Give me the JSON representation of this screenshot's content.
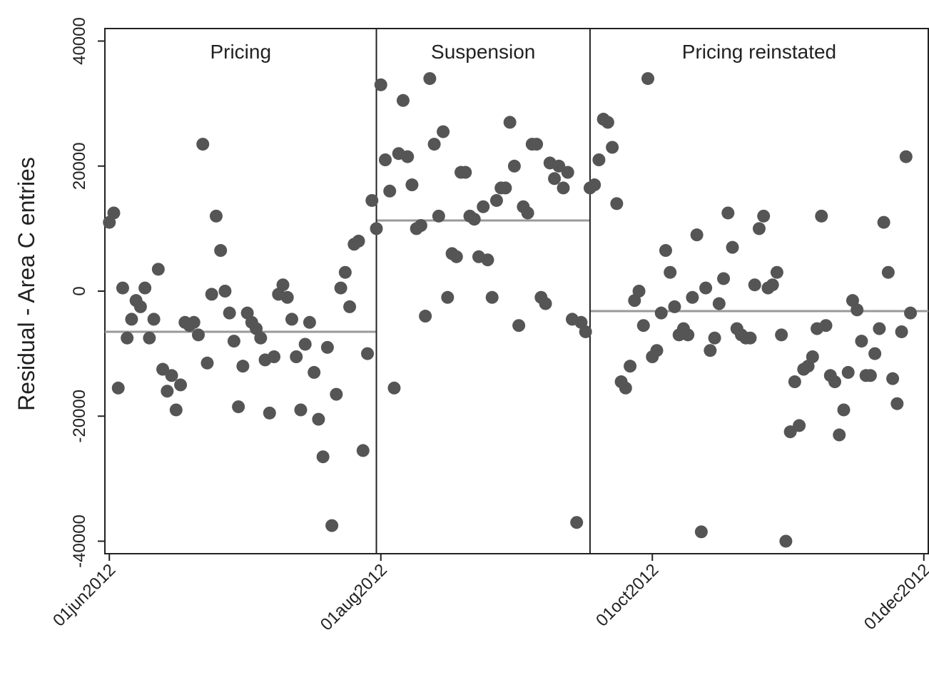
{
  "chart_data": {
    "type": "scatter",
    "title": "",
    "xlabel": "",
    "ylabel": "Residual - Area C entries",
    "xlim": [
      "2012-05-31",
      "2012-12-02"
    ],
    "ylim": [
      -42000,
      42000
    ],
    "y_ticks": [
      -40000,
      -20000,
      0,
      20000,
      40000
    ],
    "x_ticks": [
      {
        "date": "2012-06-01",
        "label": "01jun2012"
      },
      {
        "date": "2012-08-01",
        "label": "01aug2012"
      },
      {
        "date": "2012-10-01",
        "label": "01oct2012"
      },
      {
        "date": "2012-12-01",
        "label": "01dec2012"
      }
    ],
    "grid": false,
    "legend": "none",
    "colors": {
      "points": "#555555",
      "mean_line": "#999999",
      "divider": "#222222",
      "frame": "#222222"
    },
    "periods": [
      {
        "label": "Pricing",
        "start": "2012-05-31",
        "end": "2012-07-31",
        "mean": -6500
      },
      {
        "label": "Suspension",
        "start": "2012-07-31",
        "end": "2012-09-17",
        "mean": 11300
      },
      {
        "label": "Pricing reinstated",
        "start": "2012-09-17",
        "end": "2012-12-02",
        "mean": -3200
      }
    ],
    "dividers": [
      "2012-07-31",
      "2012-09-17"
    ],
    "points": [
      {
        "x": "2012-06-01",
        "y": 11000
      },
      {
        "x": "2012-06-02",
        "y": 12500
      },
      {
        "x": "2012-06-03",
        "y": -15500
      },
      {
        "x": "2012-06-04",
        "y": 500
      },
      {
        "x": "2012-06-05",
        "y": -7500
      },
      {
        "x": "2012-06-06",
        "y": -4500
      },
      {
        "x": "2012-06-07",
        "y": -1500
      },
      {
        "x": "2012-06-08",
        "y": -2500
      },
      {
        "x": "2012-06-09",
        "y": 500
      },
      {
        "x": "2012-06-10",
        "y": -7500
      },
      {
        "x": "2012-06-11",
        "y": -4500
      },
      {
        "x": "2012-06-12",
        "y": 3500
      },
      {
        "x": "2012-06-13",
        "y": -12500
      },
      {
        "x": "2012-06-14",
        "y": -16000
      },
      {
        "x": "2012-06-15",
        "y": -13500
      },
      {
        "x": "2012-06-16",
        "y": -19000
      },
      {
        "x": "2012-06-17",
        "y": -15000
      },
      {
        "x": "2012-06-18",
        "y": -5000
      },
      {
        "x": "2012-06-19",
        "y": -5500
      },
      {
        "x": "2012-06-20",
        "y": -5000
      },
      {
        "x": "2012-06-21",
        "y": -7000
      },
      {
        "x": "2012-06-22",
        "y": 23500
      },
      {
        "x": "2012-06-23",
        "y": -11500
      },
      {
        "x": "2012-06-24",
        "y": -500
      },
      {
        "x": "2012-06-25",
        "y": 12000
      },
      {
        "x": "2012-06-26",
        "y": 6500
      },
      {
        "x": "2012-06-27",
        "y": 0
      },
      {
        "x": "2012-06-28",
        "y": -3500
      },
      {
        "x": "2012-06-29",
        "y": -8000
      },
      {
        "x": "2012-06-30",
        "y": -18500
      },
      {
        "x": "2012-07-01",
        "y": -12000
      },
      {
        "x": "2012-07-02",
        "y": -3500
      },
      {
        "x": "2012-07-03",
        "y": -5000
      },
      {
        "x": "2012-07-04",
        "y": -6000
      },
      {
        "x": "2012-07-05",
        "y": -7500
      },
      {
        "x": "2012-07-06",
        "y": -11000
      },
      {
        "x": "2012-07-07",
        "y": -19500
      },
      {
        "x": "2012-07-08",
        "y": -10500
      },
      {
        "x": "2012-07-09",
        "y": -500
      },
      {
        "x": "2012-07-10",
        "y": 1000
      },
      {
        "x": "2012-07-11",
        "y": -1000
      },
      {
        "x": "2012-07-12",
        "y": -4500
      },
      {
        "x": "2012-07-13",
        "y": -10500
      },
      {
        "x": "2012-07-14",
        "y": -19000
      },
      {
        "x": "2012-07-15",
        "y": -8500
      },
      {
        "x": "2012-07-16",
        "y": -5000
      },
      {
        "x": "2012-07-17",
        "y": -13000
      },
      {
        "x": "2012-07-18",
        "y": -20500
      },
      {
        "x": "2012-07-19",
        "y": -26500
      },
      {
        "x": "2012-07-20",
        "y": -9000
      },
      {
        "x": "2012-07-21",
        "y": -37500
      },
      {
        "x": "2012-07-22",
        "y": -16500
      },
      {
        "x": "2012-07-23",
        "y": 500
      },
      {
        "x": "2012-07-24",
        "y": 3000
      },
      {
        "x": "2012-07-25",
        "y": -2500
      },
      {
        "x": "2012-07-26",
        "y": 7500
      },
      {
        "x": "2012-07-27",
        "y": 8000
      },
      {
        "x": "2012-07-28",
        "y": -25500
      },
      {
        "x": "2012-07-29",
        "y": -10000
      },
      {
        "x": "2012-07-30",
        "y": 14500
      },
      {
        "x": "2012-07-31",
        "y": 10000
      },
      {
        "x": "2012-08-01",
        "y": 33000
      },
      {
        "x": "2012-08-02",
        "y": 21000
      },
      {
        "x": "2012-08-03",
        "y": 16000
      },
      {
        "x": "2012-08-04",
        "y": -15500
      },
      {
        "x": "2012-08-05",
        "y": 22000
      },
      {
        "x": "2012-08-06",
        "y": 30500
      },
      {
        "x": "2012-08-07",
        "y": 21500
      },
      {
        "x": "2012-08-08",
        "y": 17000
      },
      {
        "x": "2012-08-09",
        "y": 10000
      },
      {
        "x": "2012-08-10",
        "y": 10500
      },
      {
        "x": "2012-08-11",
        "y": -4000
      },
      {
        "x": "2012-08-12",
        "y": 34000
      },
      {
        "x": "2012-08-13",
        "y": 23500
      },
      {
        "x": "2012-08-14",
        "y": 12000
      },
      {
        "x": "2012-08-15",
        "y": 25500
      },
      {
        "x": "2012-08-16",
        "y": -1000
      },
      {
        "x": "2012-08-17",
        "y": 6000
      },
      {
        "x": "2012-08-18",
        "y": 5500
      },
      {
        "x": "2012-08-19",
        "y": 19000
      },
      {
        "x": "2012-08-20",
        "y": 19000
      },
      {
        "x": "2012-08-21",
        "y": 12000
      },
      {
        "x": "2012-08-22",
        "y": 11500
      },
      {
        "x": "2012-08-23",
        "y": 5500
      },
      {
        "x": "2012-08-24",
        "y": 13500
      },
      {
        "x": "2012-08-25",
        "y": 5000
      },
      {
        "x": "2012-08-26",
        "y": -1000
      },
      {
        "x": "2012-08-27",
        "y": 14500
      },
      {
        "x": "2012-08-28",
        "y": 16500
      },
      {
        "x": "2012-08-29",
        "y": 16500
      },
      {
        "x": "2012-08-30",
        "y": 27000
      },
      {
        "x": "2012-08-31",
        "y": 20000
      },
      {
        "x": "2012-09-01",
        "y": -5500
      },
      {
        "x": "2012-09-02",
        "y": 13500
      },
      {
        "x": "2012-09-03",
        "y": 12500
      },
      {
        "x": "2012-09-04",
        "y": 23500
      },
      {
        "x": "2012-09-05",
        "y": 23500
      },
      {
        "x": "2012-09-06",
        "y": -1000
      },
      {
        "x": "2012-09-07",
        "y": -2000
      },
      {
        "x": "2012-09-08",
        "y": 20500
      },
      {
        "x": "2012-09-09",
        "y": 18000
      },
      {
        "x": "2012-09-10",
        "y": 20000
      },
      {
        "x": "2012-09-11",
        "y": 16500
      },
      {
        "x": "2012-09-12",
        "y": 19000
      },
      {
        "x": "2012-09-13",
        "y": -4500
      },
      {
        "x": "2012-09-14",
        "y": -37000
      },
      {
        "x": "2012-09-15",
        "y": -5000
      },
      {
        "x": "2012-09-16",
        "y": -6500
      },
      {
        "x": "2012-09-17",
        "y": 16500
      },
      {
        "x": "2012-09-18",
        "y": 17000
      },
      {
        "x": "2012-09-19",
        "y": 21000
      },
      {
        "x": "2012-09-20",
        "y": 27500
      },
      {
        "x": "2012-09-21",
        "y": 27000
      },
      {
        "x": "2012-09-22",
        "y": 23000
      },
      {
        "x": "2012-09-23",
        "y": 14000
      },
      {
        "x": "2012-09-24",
        "y": -14500
      },
      {
        "x": "2012-09-25",
        "y": -15500
      },
      {
        "x": "2012-09-26",
        "y": -12000
      },
      {
        "x": "2012-09-27",
        "y": -1500
      },
      {
        "x": "2012-09-28",
        "y": 0
      },
      {
        "x": "2012-09-29",
        "y": -5500
      },
      {
        "x": "2012-09-30",
        "y": 34000
      },
      {
        "x": "2012-10-01",
        "y": -10500
      },
      {
        "x": "2012-10-02",
        "y": -9500
      },
      {
        "x": "2012-10-03",
        "y": -3500
      },
      {
        "x": "2012-10-04",
        "y": 6500
      },
      {
        "x": "2012-10-05",
        "y": 3000
      },
      {
        "x": "2012-10-06",
        "y": -2500
      },
      {
        "x": "2012-10-07",
        "y": -7000
      },
      {
        "x": "2012-10-08",
        "y": -6000
      },
      {
        "x": "2012-10-09",
        "y": -7000
      },
      {
        "x": "2012-10-10",
        "y": -1000
      },
      {
        "x": "2012-10-11",
        "y": 9000
      },
      {
        "x": "2012-10-12",
        "y": -38500
      },
      {
        "x": "2012-10-13",
        "y": 500
      },
      {
        "x": "2012-10-14",
        "y": -9500
      },
      {
        "x": "2012-10-15",
        "y": -7500
      },
      {
        "x": "2012-10-16",
        "y": -2000
      },
      {
        "x": "2012-10-17",
        "y": 2000
      },
      {
        "x": "2012-10-18",
        "y": 12500
      },
      {
        "x": "2012-10-19",
        "y": 7000
      },
      {
        "x": "2012-10-20",
        "y": -6000
      },
      {
        "x": "2012-10-21",
        "y": -7000
      },
      {
        "x": "2012-10-22",
        "y": -7500
      },
      {
        "x": "2012-10-23",
        "y": -7500
      },
      {
        "x": "2012-10-24",
        "y": 1000
      },
      {
        "x": "2012-10-25",
        "y": 10000
      },
      {
        "x": "2012-10-26",
        "y": 12000
      },
      {
        "x": "2012-10-27",
        "y": 500
      },
      {
        "x": "2012-10-28",
        "y": 1000
      },
      {
        "x": "2012-10-29",
        "y": 3000
      },
      {
        "x": "2012-10-30",
        "y": -7000
      },
      {
        "x": "2012-10-31",
        "y": -40000
      },
      {
        "x": "2012-11-01",
        "y": -22500
      },
      {
        "x": "2012-11-02",
        "y": -14500
      },
      {
        "x": "2012-11-03",
        "y": -21500
      },
      {
        "x": "2012-11-04",
        "y": -12500
      },
      {
        "x": "2012-11-05",
        "y": -12000
      },
      {
        "x": "2012-11-06",
        "y": -10500
      },
      {
        "x": "2012-11-07",
        "y": -6000
      },
      {
        "x": "2012-11-08",
        "y": 12000
      },
      {
        "x": "2012-11-09",
        "y": -5500
      },
      {
        "x": "2012-11-10",
        "y": -13500
      },
      {
        "x": "2012-11-11",
        "y": -14500
      },
      {
        "x": "2012-11-12",
        "y": -23000
      },
      {
        "x": "2012-11-13",
        "y": -19000
      },
      {
        "x": "2012-11-14",
        "y": -13000
      },
      {
        "x": "2012-11-15",
        "y": -1500
      },
      {
        "x": "2012-11-16",
        "y": -3000
      },
      {
        "x": "2012-11-17",
        "y": -8000
      },
      {
        "x": "2012-11-18",
        "y": -13500
      },
      {
        "x": "2012-11-19",
        "y": -13500
      },
      {
        "x": "2012-11-20",
        "y": -10000
      },
      {
        "x": "2012-11-21",
        "y": -6000
      },
      {
        "x": "2012-11-22",
        "y": 11000
      },
      {
        "x": "2012-11-23",
        "y": 3000
      },
      {
        "x": "2012-11-24",
        "y": -14000
      },
      {
        "x": "2012-11-25",
        "y": -18000
      },
      {
        "x": "2012-11-26",
        "y": -6500
      },
      {
        "x": "2012-11-27",
        "y": 21500
      },
      {
        "x": "2012-11-28",
        "y": -3500
      }
    ]
  }
}
